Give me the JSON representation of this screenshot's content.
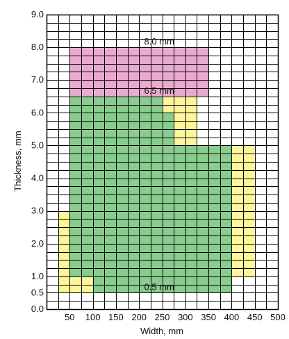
{
  "chart_data": {
    "type": "heatmap",
    "xlabel": "Width, mm",
    "ylabel": "Thickness, mm",
    "xlim": [
      0,
      500
    ],
    "ylim": [
      0,
      9
    ],
    "grid": true,
    "grid_step": {
      "x": 25,
      "y": 0.25
    },
    "x_ticks": [
      {
        "value": 50,
        "label": "50"
      },
      {
        "value": 100,
        "label": "100"
      },
      {
        "value": 150,
        "label": "150"
      },
      {
        "value": 200,
        "label": "200"
      },
      {
        "value": 250,
        "label": "250"
      },
      {
        "value": 300,
        "label": "300"
      },
      {
        "value": 350,
        "label": "350"
      },
      {
        "value": 400,
        "label": "400"
      },
      {
        "value": 450,
        "label": "450"
      },
      {
        "value": 500,
        "label": "500"
      }
    ],
    "y_ticks": [
      {
        "value": 0,
        "label": "0.0"
      },
      {
        "value": 0.5,
        "label": "0.5"
      },
      {
        "value": 1,
        "label": "1.0"
      },
      {
        "value": 2,
        "label": "2.0"
      },
      {
        "value": 3,
        "label": "3.0"
      },
      {
        "value": 4,
        "label": "4.0"
      },
      {
        "value": 5,
        "label": "5.0"
      },
      {
        "value": 6,
        "label": "6.0"
      },
      {
        "value": 7,
        "label": "7.0"
      },
      {
        "value": 8,
        "label": "8.0"
      },
      {
        "value": 9,
        "label": "9.0"
      }
    ],
    "colors": {
      "pink": "#eaaad0",
      "green": "#88cc8e",
      "yellow": "#fdf59a",
      "grid": "#000000"
    },
    "regions": [
      {
        "color": "pink",
        "x": [
          50,
          350
        ],
        "y": [
          6.5,
          8.0
        ]
      },
      {
        "color": "green",
        "x": [
          50,
          250
        ],
        "y": [
          5.0,
          6.5
        ]
      },
      {
        "color": "green",
        "x": [
          250,
          275
        ],
        "y": [
          5.0,
          6.0
        ]
      },
      {
        "color": "green",
        "x": [
          50,
          400
        ],
        "y": [
          1.0,
          5.0
        ]
      },
      {
        "color": "green",
        "x": [
          100,
          400
        ],
        "y": [
          0.5,
          1.0
        ]
      },
      {
        "color": "yellow",
        "x": [
          250,
          275
        ],
        "y": [
          6.0,
          6.5
        ]
      },
      {
        "color": "yellow",
        "x": [
          275,
          325
        ],
        "y": [
          5.5,
          6.5
        ]
      },
      {
        "color": "yellow",
        "x": [
          275,
          325
        ],
        "y": [
          5.0,
          5.5
        ]
      },
      {
        "color": "yellow",
        "x": [
          400,
          450
        ],
        "y": [
          1.0,
          5.0
        ]
      },
      {
        "color": "yellow",
        "x": [
          25,
          50
        ],
        "y": [
          1.0,
          3.0
        ]
      },
      {
        "color": "yellow",
        "x": [
          25,
          100
        ],
        "y": [
          0.5,
          1.0
        ]
      }
    ],
    "annotations": [
      {
        "text": "8.0 mm",
        "x": 200,
        "y": 8.0
      },
      {
        "text": "6.5 mm",
        "x": 200,
        "y": 6.5
      },
      {
        "text": "0.5 mm",
        "x": 200,
        "y": 0.5
      }
    ]
  }
}
